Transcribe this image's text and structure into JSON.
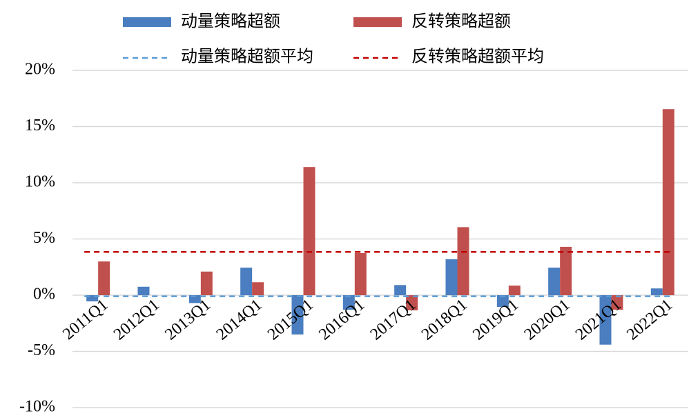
{
  "chart_data": {
    "type": "bar",
    "categories": [
      "2011Q1",
      "2012Q1",
      "2013Q1",
      "2014Q1",
      "2015Q1",
      "2016Q1",
      "2017Q1",
      "2018Q1",
      "2019Q1",
      "2020Q1",
      "2021Q1",
      "2022Q1"
    ],
    "series": [
      {
        "name": "动量策略超额",
        "color": "#4a7ec0",
        "values": [
          -0.55,
          0.75,
          -0.7,
          2.45,
          -3.5,
          -1.3,
          0.9,
          3.2,
          -1.05,
          2.45,
          -4.4,
          0.6
        ]
      },
      {
        "name": "反转策略超额",
        "color": "#c0504d",
        "values": [
          3.0,
          0,
          2.1,
          1.15,
          11.4,
          3.75,
          -1.35,
          6.05,
          0.85,
          4.3,
          -1.3,
          16.55
        ]
      }
    ],
    "averages": [
      {
        "name": "动量策略超额平均",
        "color": "#5b9bd5",
        "value": -0.1
      },
      {
        "name": "反转策略超额平均",
        "color": "#c00000",
        "value": 3.85
      }
    ],
    "ylim": [
      -10,
      20
    ],
    "yticks": [
      {
        "value": -10,
        "label": "-10%"
      },
      {
        "value": -5,
        "label": "-5%"
      },
      {
        "value": 0,
        "label": "0%"
      },
      {
        "value": 5,
        "label": "5%"
      },
      {
        "value": 10,
        "label": "10%"
      },
      {
        "value": 15,
        "label": "15%"
      },
      {
        "value": 20,
        "label": "20%"
      }
    ],
    "grid": true
  }
}
